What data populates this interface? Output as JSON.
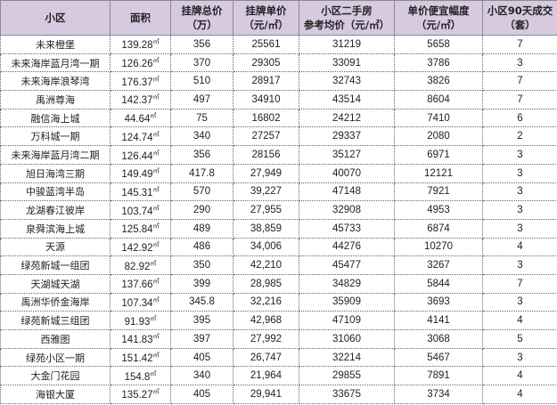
{
  "headers": [
    "小区",
    "面积",
    "挂牌总价\n（万）",
    "挂牌单价\n（元/㎡）",
    "小区二手房\n参考均价（元/㎡）",
    "单价便宜幅度\n（元/㎡）",
    "小区90天成交\n（套）"
  ],
  "area_unit": "㎡",
  "header_color": "#d6c9e0",
  "rows": [
    [
      "未来橙堡",
      "139.28",
      "356",
      "25561",
      "31219",
      "5658",
      "7"
    ],
    [
      "未来海岸蓝月湾一期",
      "126.26",
      "370",
      "29305",
      "33091",
      "3786",
      "3"
    ],
    [
      "未来海岸浪琴湾",
      "176.37",
      "510",
      "28917",
      "32743",
      "3826",
      "7"
    ],
    [
      "禹洲尊海",
      "142.37",
      "497",
      "34910",
      "43514",
      "8604",
      "7"
    ],
    [
      "融信海上城",
      "44.64",
      "75",
      "16802",
      "24212",
      "7410",
      "6"
    ],
    [
      "万科城一期",
      "124.74",
      "340",
      "27257",
      "29337",
      "2080",
      "2"
    ],
    [
      "未来海岸蓝月湾二期",
      "126.44",
      "356",
      "28156",
      "35127",
      "6971",
      "3"
    ],
    [
      "旭日海湾三期",
      "149.49",
      "417.8",
      "27,949",
      "40070",
      "12121",
      "3"
    ],
    [
      "中骏蓝湾半岛",
      "145.31",
      "570",
      "39,227",
      "47148",
      "7921",
      "3"
    ],
    [
      "龙湖春江彼岸",
      "103.74",
      "290",
      "27,955",
      "32908",
      "4953",
      "3"
    ],
    [
      "泉舜滨海上城",
      "125.84",
      "489",
      "38,859",
      "45733",
      "6874",
      "3"
    ],
    [
      "天源",
      "142.92",
      "486",
      "34,006",
      "44276",
      "10270",
      "4"
    ],
    [
      "绿苑新城一组团",
      "82.92",
      "350",
      "42,210",
      "45477",
      "3267",
      "3"
    ],
    [
      "天湖城天湖",
      "137.66",
      "399",
      "28,985",
      "34829",
      "5844",
      "7"
    ],
    [
      "禹洲华侨金海岸",
      "107.34",
      "345.8",
      "32,216",
      "35909",
      "3693",
      "3"
    ],
    [
      "绿苑新城三组团",
      "91.93",
      "395",
      "42,968",
      "47109",
      "4141",
      "4"
    ],
    [
      "西雅图",
      "141.83",
      "397",
      "27,992",
      "31060",
      "3068",
      "5"
    ],
    [
      "绿苑小区一期",
      "151.42",
      "405",
      "26,747",
      "32214",
      "5467",
      "3"
    ],
    [
      "大金门花园",
      "154.8",
      "340",
      "21,964",
      "29855",
      "7891",
      "4"
    ],
    [
      "海银大厦",
      "135.27",
      "405",
      "29,941",
      "33675",
      "3734",
      "4"
    ]
  ]
}
